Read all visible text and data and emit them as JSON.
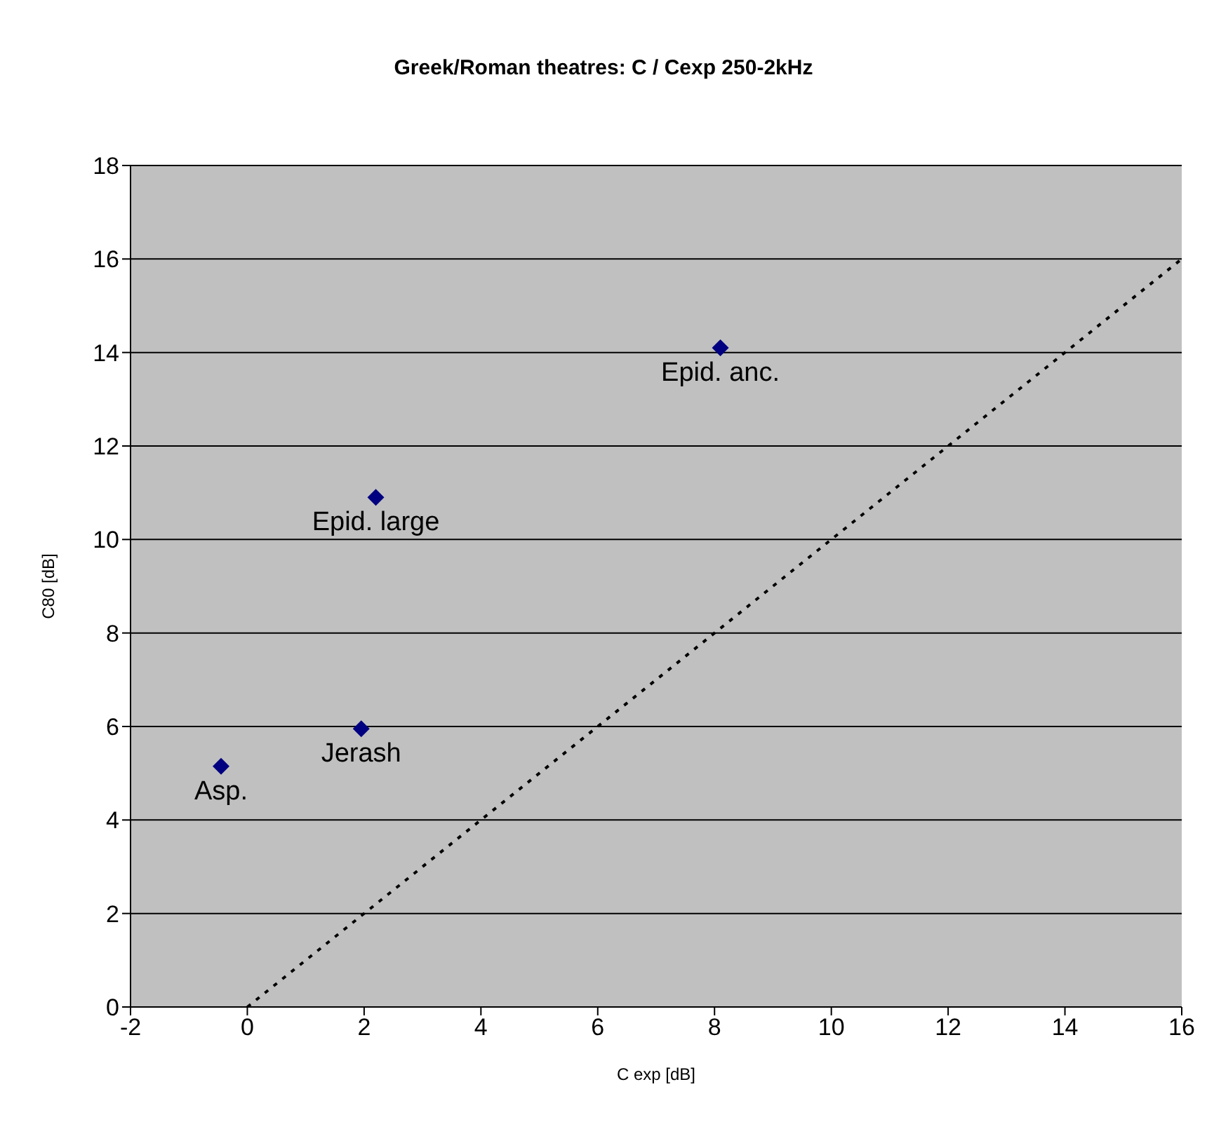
{
  "chart_data": {
    "type": "scatter",
    "title": "Greek/Roman theatres: C / Cexp 250-2kHz",
    "xlabel": "C exp [dB]",
    "ylabel": "C80 [dB]",
    "series": [
      {
        "color": "#000080",
        "marker": "diamond",
        "x": [
          -0.45,
          1.95,
          2.2,
          8.1
        ],
        "values": [
          5.15,
          5.95,
          10.9,
          14.1
        ]
      },
      {
        "type": "line",
        "color": "#000000",
        "line_style": "dotted",
        "marker": "none",
        "x": [
          0,
          16
        ],
        "values": [
          0,
          16
        ]
      }
    ],
    "annotations": [
      {
        "text": "Asp.",
        "x": -0.45,
        "y": 5.15
      },
      {
        "text": "Jerash",
        "x": 1.95,
        "y": 5.95
      },
      {
        "text": "Epid. large",
        "x": 2.2,
        "y": 10.9
      },
      {
        "text": "Epid. anc.",
        "x": 8.1,
        "y": 14.1
      }
    ],
    "xlim": [
      -2,
      16
    ],
    "xticks": [
      -2,
      0,
      2,
      4,
      6,
      8,
      10,
      12,
      14,
      16
    ],
    "ylim": [
      0,
      18
    ],
    "yticks": [
      0,
      2,
      4,
      6,
      8,
      10,
      12,
      14,
      16,
      18
    ],
    "grid": "y"
  }
}
